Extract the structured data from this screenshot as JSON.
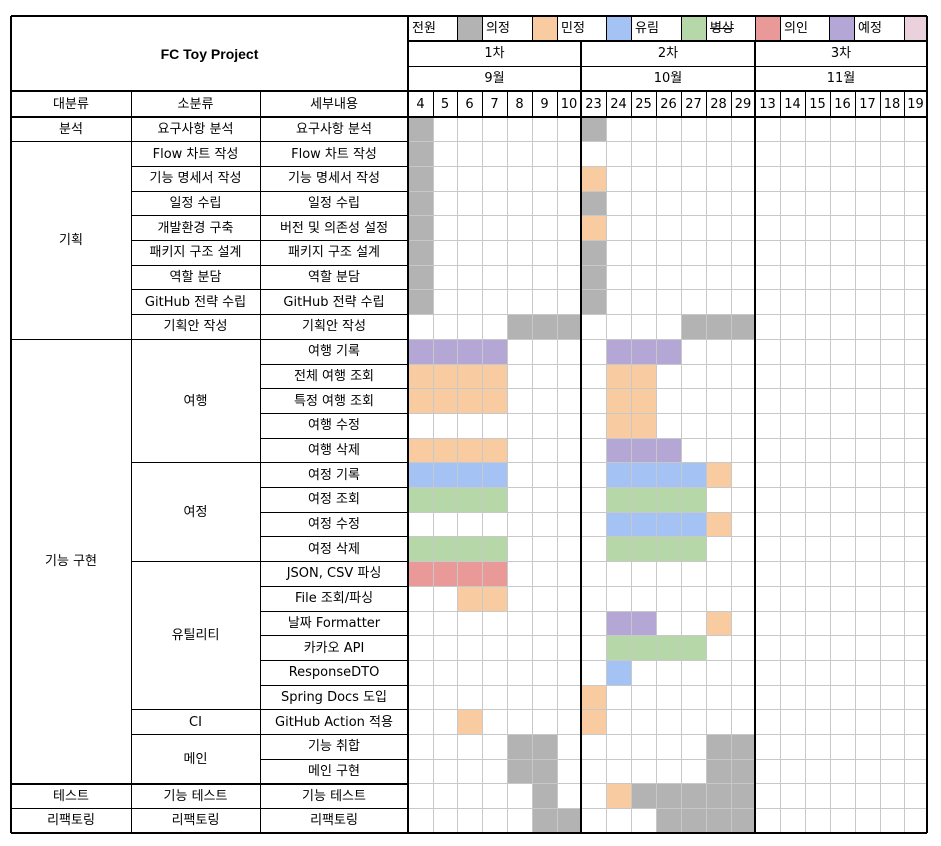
{
  "title": "FC Toy Project",
  "legend": [
    {
      "name": "전원",
      "color": "#b3b3b3"
    },
    {
      "name": "의정",
      "color": "#f8cba0"
    },
    {
      "name": "민정",
      "color": "#a4c2f4"
    },
    {
      "name": "유림",
      "color": "#b6d7a8"
    },
    {
      "name": "병상",
      "color": "#ea9999",
      "strike": true
    },
    {
      "name": "의인",
      "color": "#b4a7d6"
    },
    {
      "name": "예정",
      "color": "#ead1dc"
    }
  ],
  "rounds": [
    "1차",
    "2차",
    "3차"
  ],
  "months": [
    "9월",
    "10월",
    "11월"
  ],
  "col_headers": [
    "대분류",
    "소분류",
    "세부내용"
  ],
  "days": [
    "4",
    "5",
    "6",
    "7",
    "8",
    "9",
    "10",
    "23",
    "24",
    "25",
    "26",
    "27",
    "28",
    "29",
    "13",
    "14",
    "15",
    "16",
    "17",
    "18",
    "19"
  ],
  "colors": {
    "gray": "#b3b3b3",
    "orange": "#f8cba0",
    "blue": "#a4c2f4",
    "green": "#b6d7a8",
    "red": "#ea9999",
    "purple": "#b4a7d6",
    "pink": "#ead1dc"
  },
  "categories": [
    {
      "name": "분석",
      "span": 1
    },
    {
      "name": "기획",
      "span": 8
    },
    {
      "name": "기능 구현",
      "span": 18
    },
    {
      "name": "테스트",
      "span": 1
    },
    {
      "name": "리팩토링",
      "span": 1
    }
  ],
  "subcategories": [
    {
      "name": "요구사항 분석",
      "span": 1
    },
    {
      "name": "Flow 차트 작성",
      "span": 1
    },
    {
      "name": "기능 명세서 작성",
      "span": 1
    },
    {
      "name": "일정 수립",
      "span": 1
    },
    {
      "name": "개발환경 구축",
      "span": 1
    },
    {
      "name": "패키지 구조 설계",
      "span": 1
    },
    {
      "name": "역할 분담",
      "span": 1
    },
    {
      "name": "GitHub 전략 수립",
      "span": 1
    },
    {
      "name": "기획안 작성",
      "span": 1
    },
    {
      "name": "여행",
      "span": 5
    },
    {
      "name": "여정",
      "span": 4
    },
    {
      "name": "유틸리티",
      "span": 6
    },
    {
      "name": "CI",
      "span": 1
    },
    {
      "name": "메인",
      "span": 2
    },
    {
      "name": "기능 테스트",
      "span": 1
    },
    {
      "name": "리팩토링",
      "span": 1
    }
  ],
  "tasks": [
    {
      "detail": "요구사항 분석",
      "fills": {
        "0": "gray",
        "7": "gray"
      }
    },
    {
      "detail": "Flow 차트 작성",
      "fills": {
        "0": "gray"
      }
    },
    {
      "detail": "기능 명세서 작성",
      "fills": {
        "0": "gray",
        "7": "orange"
      }
    },
    {
      "detail": "일정 수립",
      "fills": {
        "0": "gray",
        "7": "gray"
      }
    },
    {
      "detail": "버전 및 의존성 설정",
      "fills": {
        "0": "gray",
        "7": "orange"
      }
    },
    {
      "detail": "패키지 구조 설계",
      "fills": {
        "0": "gray",
        "7": "gray"
      }
    },
    {
      "detail": "역할 분담",
      "fills": {
        "0": "gray",
        "7": "gray"
      }
    },
    {
      "detail": "GitHub 전략 수립",
      "fills": {
        "0": "gray",
        "7": "gray"
      }
    },
    {
      "detail": "기획안 작성",
      "fills": {
        "4": "gray",
        "5": "gray",
        "6": "gray",
        "11": "gray",
        "12": "gray",
        "13": "gray"
      }
    },
    {
      "detail": "여행 기록",
      "fills": {
        "0": "purple",
        "1": "purple",
        "2": "purple",
        "3": "purple",
        "8": "purple",
        "9": "purple",
        "10": "purple"
      }
    },
    {
      "detail": "전체 여행 조회",
      "fills": {
        "0": "orange",
        "1": "orange",
        "2": "orange",
        "3": "orange",
        "8": "orange",
        "9": "orange"
      }
    },
    {
      "detail": "특정 여행 조회",
      "fills": {
        "0": "orange",
        "1": "orange",
        "2": "orange",
        "3": "orange",
        "8": "orange",
        "9": "orange"
      }
    },
    {
      "detail": "여행 수정",
      "fills": {
        "8": "orange",
        "9": "orange"
      }
    },
    {
      "detail": "여행 삭제",
      "fills": {
        "0": "orange",
        "1": "orange",
        "2": "orange",
        "3": "orange",
        "8": "purple",
        "9": "purple",
        "10": "purple"
      }
    },
    {
      "detail": "여정 기록",
      "fills": {
        "0": "blue",
        "1": "blue",
        "2": "blue",
        "3": "blue",
        "8": "blue",
        "9": "blue",
        "10": "blue",
        "11": "blue",
        "12": "orange"
      }
    },
    {
      "detail": "여정 조회",
      "fills": {
        "0": "green",
        "1": "green",
        "2": "green",
        "3": "green",
        "8": "green",
        "9": "green",
        "10": "green",
        "11": "green"
      }
    },
    {
      "detail": "여정 수정",
      "fills": {
        "8": "blue",
        "9": "blue",
        "10": "blue",
        "11": "blue",
        "12": "orange"
      }
    },
    {
      "detail": "여정 삭제",
      "fills": {
        "0": "green",
        "1": "green",
        "2": "green",
        "3": "green",
        "8": "green",
        "9": "green",
        "10": "green",
        "11": "green"
      }
    },
    {
      "detail": "JSON, CSV 파싱",
      "fills": {
        "0": "red",
        "1": "red",
        "2": "red",
        "3": "red"
      }
    },
    {
      "detail": "File 조회/파싱",
      "fills": {
        "2": "orange",
        "3": "orange"
      }
    },
    {
      "detail": "날짜 Formatter",
      "fills": {
        "8": "purple",
        "9": "purple",
        "12": "orange"
      }
    },
    {
      "detail": "카카오 API",
      "fills": {
        "8": "green",
        "9": "green",
        "10": "green",
        "11": "green"
      }
    },
    {
      "detail": "ResponseDTO",
      "fills": {
        "8": "blue"
      }
    },
    {
      "detail": "Spring Docs 도입",
      "fills": {
        "7": "orange"
      }
    },
    {
      "detail": "GitHub Action 적용",
      "fills": {
        "2": "orange",
        "7": "orange"
      }
    },
    {
      "detail": "기능 취합",
      "fills": {
        "4": "gray",
        "5": "gray",
        "12": "gray",
        "13": "gray"
      }
    },
    {
      "detail": "메인 구현",
      "fills": {
        "4": "gray",
        "5": "gray",
        "12": "gray",
        "13": "gray"
      }
    },
    {
      "detail": "기능 테스트",
      "fills": {
        "5": "gray",
        "8": "orange",
        "9": "gray",
        "10": "gray",
        "11": "gray",
        "12": "gray",
        "13": "gray"
      }
    },
    {
      "detail": "리팩토링",
      "fills": {
        "5": "gray",
        "6": "gray",
        "10": "gray",
        "11": "gray",
        "12": "gray",
        "13": "gray"
      }
    }
  ]
}
